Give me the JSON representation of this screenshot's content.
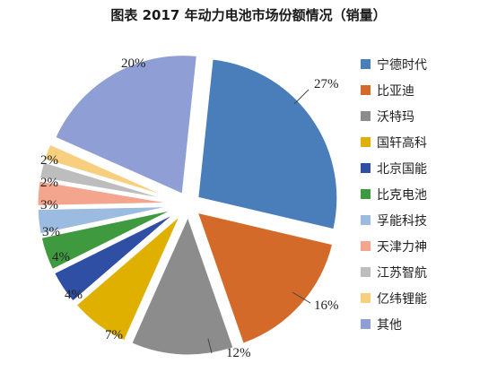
{
  "chart_data": {
    "type": "pie",
    "title": "图表  2017 年动力电池市场份额情况（销量）",
    "legend_position": "right",
    "slices": [
      {
        "name": "宁德时代",
        "value": 27,
        "label": "27%",
        "color": "#4a7ebb",
        "exploded": false
      },
      {
        "name": "比亚迪",
        "value": 16,
        "label": "16%",
        "color": "#d46a2a",
        "exploded": false
      },
      {
        "name": "沃特玛",
        "value": 12,
        "label": "12%",
        "color": "#8c8c8c",
        "exploded": false
      },
      {
        "name": "国轩高科",
        "value": 7,
        "label": "7%",
        "color": "#e0b000",
        "exploded": false
      },
      {
        "name": "北京国能",
        "value": 4,
        "label": "4%",
        "color": "#2f4fa5",
        "exploded": false
      },
      {
        "name": "比克电池",
        "value": 4,
        "label": "4%",
        "color": "#3f9a3f",
        "exploded": false
      },
      {
        "name": "孚能科技",
        "value": 3,
        "label": "3%",
        "color": "#9bbbe0",
        "exploded": false
      },
      {
        "name": "天津力神",
        "value": 3,
        "label": "3%",
        "color": "#f4a58e",
        "exploded": false
      },
      {
        "name": "江苏智航",
        "value": 2,
        "label": "2%",
        "color": "#bdbdbd",
        "exploded": false
      },
      {
        "name": "亿纬锂能",
        "value": 2,
        "label": "2%",
        "color": "#f8cf7e",
        "exploded": false
      },
      {
        "name": "其他",
        "value": 20,
        "label": "20%",
        "color": "#8f9fd6",
        "exploded": false
      }
    ]
  }
}
